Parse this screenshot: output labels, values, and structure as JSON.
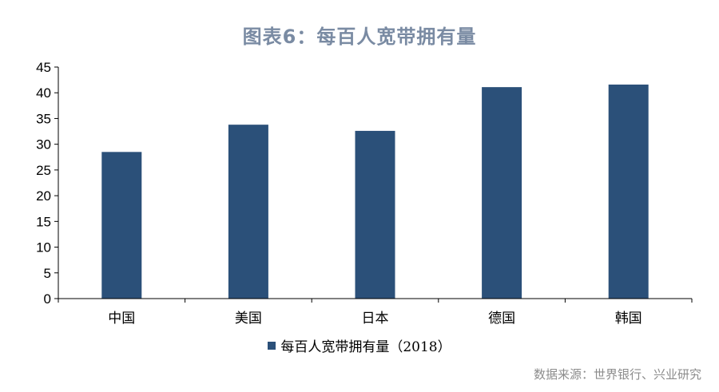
{
  "colors": {
    "bar": "#2b5079",
    "title": "#7a8ba3",
    "source": "#8c8c8c"
  },
  "title": "图表6：每百人宽带拥有量",
  "source": "数据来源：世界银行、兴业研究",
  "chart_data": {
    "type": "bar",
    "categories": [
      "中国",
      "美国",
      "日本",
      "德国",
      "韩国"
    ],
    "series": [
      {
        "name": "每百人宽带拥有量（2018）",
        "values": [
          28.5,
          33.8,
          32.6,
          41.1,
          41.6
        ]
      }
    ],
    "ylim": [
      0,
      45
    ],
    "yticks": [
      "0",
      "5",
      "10",
      "15",
      "20",
      "25",
      "30",
      "35",
      "40",
      "45"
    ],
    "grid": false,
    "legend_position": "bottom"
  }
}
